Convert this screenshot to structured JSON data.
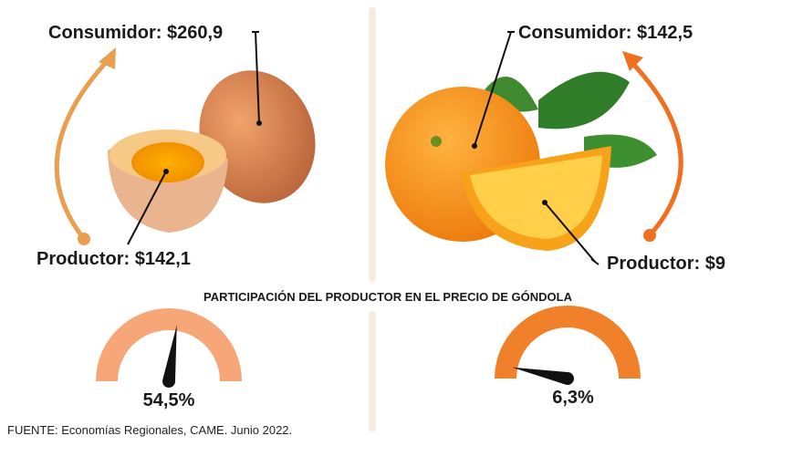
{
  "left": {
    "consumer": "Consumidor: $260,9",
    "producer": "Productor: $142,1"
  },
  "right": {
    "consumer": "Consumidor: $142,5",
    "producer": "Productor: $9"
  },
  "subtitle": "PARTICIPACIÓN DEL PRODUCTOR EN EL PRECIO DE GÓNDOLA",
  "gauges": [
    {
      "value": 54.5,
      "label": "54,5%",
      "color": "#f6a677"
    },
    {
      "value": 6.3,
      "label": "6,3%",
      "color": "#f0802a"
    }
  ],
  "gauge_range": [
    0,
    100
  ],
  "source": "FUENTE: Economías Regionales, CAME. Junio 2022."
}
